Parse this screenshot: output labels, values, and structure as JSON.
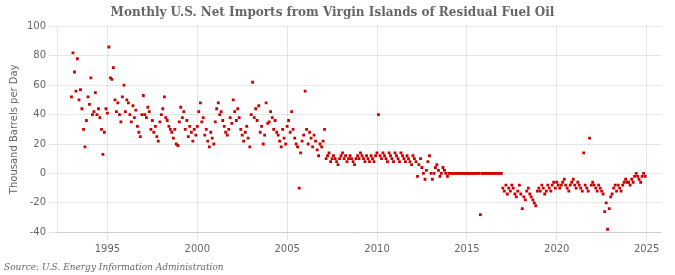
{
  "chart_data": {
    "type": "scatter",
    "title": "Monthly U.S. Net Imports from Virgin Islands of Residual Fuel Oil",
    "y_label": "Thousand Barrels per Day",
    "annotations": [
      "Source: U.S. Energy Information Administration"
    ],
    "color": "#CC0000",
    "marker": "square",
    "grid": true,
    "xlim": [
      1992.2,
      2025.8
    ],
    "xticks": [
      1995,
      2000,
      2005,
      2010,
      2015,
      2020,
      2025
    ],
    "ylim": [
      -40,
      100
    ],
    "yticks": [
      -40,
      -20,
      0,
      20,
      40,
      60,
      80,
      100
    ],
    "x": [
      1993.0,
      1993.08,
      1993.17,
      1993.25,
      1993.33,
      1993.42,
      1993.5,
      1993.58,
      1993.67,
      1993.75,
      1993.83,
      1993.92,
      1994.0,
      1994.08,
      1994.17,
      1994.25,
      1994.33,
      1994.42,
      1994.5,
      1994.58,
      1994.67,
      1994.75,
      1994.83,
      1994.92,
      1995.0,
      1995.08,
      1995.17,
      1995.25,
      1995.33,
      1995.42,
      1995.5,
      1995.58,
      1995.67,
      1995.75,
      1995.83,
      1995.92,
      1996.0,
      1996.08,
      1996.17,
      1996.25,
      1996.33,
      1996.42,
      1996.5,
      1996.58,
      1996.67,
      1996.75,
      1996.83,
      1996.92,
      1997.0,
      1997.08,
      1997.17,
      1997.25,
      1997.33,
      1997.42,
      1997.5,
      1997.58,
      1997.67,
      1997.75,
      1997.83,
      1997.92,
      1998.0,
      1998.08,
      1998.17,
      1998.25,
      1998.33,
      1998.42,
      1998.5,
      1998.58,
      1998.67,
      1998.75,
      1998.83,
      1998.92,
      1999.0,
      1999.08,
      1999.17,
      1999.25,
      1999.33,
      1999.42,
      1999.5,
      1999.58,
      1999.67,
      1999.75,
      1999.83,
      1999.92,
      2000.0,
      2000.08,
      2000.17,
      2000.25,
      2000.33,
      2000.42,
      2000.5,
      2000.58,
      2000.67,
      2000.75,
      2000.83,
      2000.92,
      2001.0,
      2001.08,
      2001.17,
      2001.25,
      2001.33,
      2001.42,
      2001.5,
      2001.58,
      2001.67,
      2001.75,
      2001.83,
      2001.92,
      2002.0,
      2002.08,
      2002.17,
      2002.25,
      2002.33,
      2002.42,
      2002.5,
      2002.58,
      2002.67,
      2002.75,
      2002.83,
      2002.92,
      2003.0,
      2003.08,
      2003.17,
      2003.25,
      2003.33,
      2003.42,
      2003.5,
      2003.58,
      2003.67,
      2003.75,
      2003.83,
      2003.92,
      2004.0,
      2004.08,
      2004.17,
      2004.25,
      2004.33,
      2004.42,
      2004.5,
      2004.58,
      2004.67,
      2004.75,
      2004.83,
      2004.92,
      2005.0,
      2005.08,
      2005.17,
      2005.25,
      2005.33,
      2005.42,
      2005.5,
      2005.58,
      2005.67,
      2005.75,
      2005.83,
      2005.92,
      2006.0,
      2006.08,
      2006.17,
      2006.25,
      2006.33,
      2006.42,
      2006.5,
      2006.58,
      2006.67,
      2006.75,
      2006.83,
      2006.92,
      2007.0,
      2007.08,
      2007.17,
      2007.25,
      2007.33,
      2007.42,
      2007.5,
      2007.58,
      2007.67,
      2007.75,
      2007.83,
      2007.92,
      2008.0,
      2008.08,
      2008.17,
      2008.25,
      2008.33,
      2008.42,
      2008.5,
      2008.58,
      2008.67,
      2008.75,
      2008.83,
      2008.92,
      2009.0,
      2009.08,
      2009.17,
      2009.25,
      2009.33,
      2009.42,
      2009.5,
      2009.58,
      2009.67,
      2009.75,
      2009.83,
      2009.92,
      2010.0,
      2010.08,
      2010.17,
      2010.25,
      2010.33,
      2010.42,
      2010.5,
      2010.58,
      2010.67,
      2010.75,
      2010.83,
      2010.92,
      2011.0,
      2011.08,
      2011.17,
      2011.25,
      2011.33,
      2011.42,
      2011.5,
      2011.58,
      2011.67,
      2011.75,
      2011.83,
      2011.92,
      2012.0,
      2012.08,
      2012.17,
      2012.25,
      2012.33,
      2012.42,
      2012.5,
      2012.58,
      2012.67,
      2012.75,
      2012.83,
      2012.92,
      2013.0,
      2013.08,
      2013.17,
      2013.25,
      2013.33,
      2013.42,
      2013.5,
      2013.58,
      2013.67,
      2013.75,
      2013.83,
      2013.92,
      2014.0,
      2014.08,
      2014.17,
      2014.25,
      2014.33,
      2014.42,
      2014.5,
      2014.58,
      2014.67,
      2014.75,
      2014.83,
      2014.92,
      2015.0,
      2015.08,
      2015.17,
      2015.25,
      2015.33,
      2015.42,
      2015.5,
      2015.58,
      2015.67,
      2015.75,
      2015.83,
      2015.92,
      2016.0,
      2016.08,
      2016.17,
      2016.25,
      2016.33,
      2016.42,
      2016.5,
      2016.58,
      2016.67,
      2016.75,
      2016.83,
      2016.92,
      2017.0,
      2017.08,
      2017.17,
      2017.25,
      2017.33,
      2017.42,
      2017.5,
      2017.58,
      2017.67,
      2017.75,
      2017.83,
      2017.92,
      2018.0,
      2018.08,
      2018.17,
      2018.25,
      2018.33,
      2018.42,
      2018.5,
      2018.58,
      2018.67,
      2018.75,
      2018.83,
      2018.92,
      2019.0,
      2019.08,
      2019.17,
      2019.25,
      2019.33,
      2019.42,
      2019.5,
      2019.58,
      2019.67,
      2019.75,
      2019.83,
      2019.92,
      2020.0,
      2020.08,
      2020.17,
      2020.25,
      2020.33,
      2020.42,
      2020.5,
      2020.58,
      2020.67,
      2020.75,
      2020.83,
      2020.92,
      2021.0,
      2021.08,
      2021.17,
      2021.25,
      2021.33,
      2021.42,
      2021.5,
      2021.58,
      2021.67,
      2021.75,
      2021.83,
      2021.92,
      2022.0,
      2022.08,
      2022.17,
      2022.25,
      2022.33,
      2022.42,
      2022.5,
      2022.58,
      2022.67,
      2022.75,
      2022.83,
      2022.92,
      2023.0,
      2023.08,
      2023.17,
      2023.25,
      2023.33,
      2023.42,
      2023.5,
      2023.58,
      2023.67,
      2023.75,
      2023.83,
      2023.92,
      2024.0,
      2024.08,
      2024.17,
      2024.25,
      2024.33,
      2024.42,
      2024.5,
      2024.58,
      2024.67,
      2024.75,
      2024.83,
      2024.92
    ],
    "values": [
      52,
      82,
      69,
      56,
      78,
      50,
      57,
      44,
      30,
      18,
      36,
      52,
      47,
      65,
      40,
      42,
      55,
      40,
      44,
      38,
      30,
      13,
      28,
      44,
      41,
      86,
      65,
      64,
      72,
      50,
      42,
      48,
      40,
      35,
      52,
      60,
      42,
      50,
      48,
      40,
      35,
      46,
      38,
      43,
      32,
      28,
      25,
      40,
      53,
      40,
      38,
      45,
      42,
      30,
      36,
      28,
      32,
      25,
      22,
      35,
      40,
      44,
      52,
      38,
      36,
      32,
      30,
      28,
      24,
      30,
      20,
      19,
      35,
      45,
      38,
      42,
      30,
      36,
      25,
      32,
      28,
      22,
      30,
      26,
      32,
      42,
      48,
      35,
      38,
      26,
      30,
      22,
      18,
      28,
      24,
      20,
      35,
      44,
      48,
      40,
      42,
      36,
      32,
      28,
      26,
      30,
      38,
      34,
      50,
      42,
      36,
      44,
      38,
      30,
      26,
      22,
      28,
      32,
      24,
      18,
      40,
      62,
      38,
      44,
      36,
      46,
      28,
      32,
      20,
      26,
      48,
      34,
      35,
      42,
      38,
      30,
      36,
      28,
      26,
      22,
      18,
      30,
      24,
      20,
      32,
      36,
      28,
      42,
      30,
      24,
      20,
      18,
      -10,
      14,
      22,
      26,
      56,
      30,
      20,
      28,
      24,
      18,
      26,
      22,
      16,
      12,
      20,
      18,
      22,
      30,
      10,
      12,
      14,
      8,
      10,
      12,
      10,
      8,
      6,
      10,
      12,
      14,
      10,
      12,
      8,
      10,
      12,
      10,
      8,
      6,
      10,
      12,
      10,
      14,
      12,
      10,
      8,
      12,
      10,
      8,
      12,
      10,
      8,
      12,
      14,
      40,
      12,
      10,
      14,
      12,
      10,
      8,
      14,
      12,
      10,
      8,
      14,
      12,
      10,
      8,
      14,
      12,
      10,
      8,
      12,
      10,
      8,
      6,
      12,
      10,
      8,
      -2,
      6,
      10,
      4,
      0,
      -4,
      2,
      8,
      12,
      0,
      -4,
      0,
      4,
      6,
      2,
      -2,
      0,
      4,
      2,
      0,
      -2,
      0,
      0,
      0,
      0,
      0,
      0,
      0,
      0,
      0,
      0,
      0,
      0,
      0,
      0,
      0,
      0,
      0,
      0,
      0,
      0,
      0,
      -28,
      0,
      0,
      0,
      0,
      0,
      0,
      0,
      0,
      0,
      0,
      0,
      0,
      0,
      0,
      -10,
      -12,
      -8,
      -14,
      -10,
      -12,
      -8,
      -10,
      -14,
      -16,
      -12,
      -8,
      -14,
      -24,
      -16,
      -18,
      -12,
      -10,
      -14,
      -16,
      -18,
      -20,
      -22,
      -12,
      -10,
      -12,
      -8,
      -10,
      -14,
      -12,
      -8,
      -10,
      -12,
      -8,
      -6,
      -10,
      -6,
      -8,
      -10,
      -8,
      -6,
      -4,
      -8,
      -10,
      -12,
      -8,
      -6,
      -4,
      -8,
      -10,
      -6,
      -8,
      -10,
      -12,
      14,
      -8,
      -10,
      -12,
      24,
      -8,
      -6,
      -8,
      -10,
      -12,
      -8,
      -10,
      -12,
      -14,
      -26,
      -20,
      -38,
      -24,
      -16,
      -14,
      -10,
      -8,
      -12,
      -8,
      -10,
      -12,
      -8,
      -6,
      -4,
      -6,
      -6,
      -8,
      -4,
      -6,
      -2,
      0,
      -2,
      -4,
      -6,
      -2,
      0,
      -2
    ]
  }
}
